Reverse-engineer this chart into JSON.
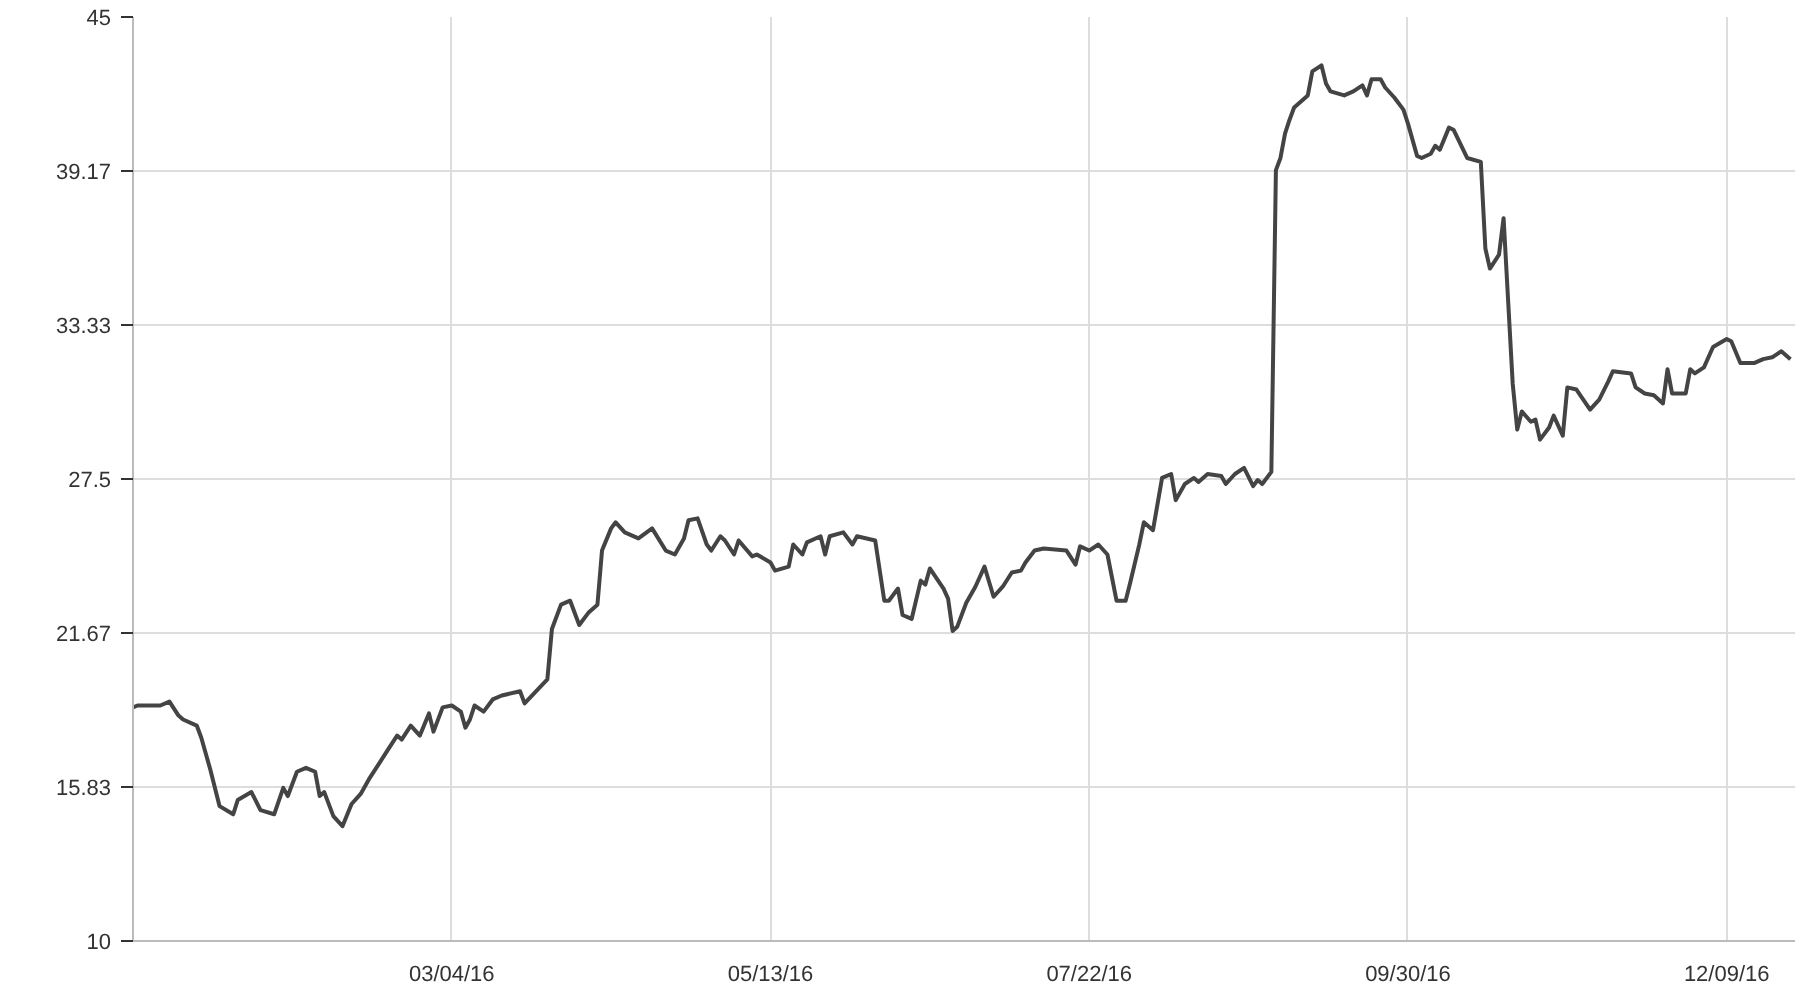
{
  "chart_data": {
    "type": "line",
    "x": [
      "2015-12-25",
      "2015-12-26",
      "2015-12-31",
      "2016-01-02",
      "2016-01-04",
      "2016-01-05",
      "2016-01-08",
      "2016-01-09",
      "2016-01-11",
      "2016-01-13",
      "2016-01-16",
      "2016-01-17",
      "2016-01-20",
      "2016-01-22",
      "2016-01-25",
      "2016-01-27",
      "2016-01-28",
      "2016-01-30",
      "2016-02-01",
      "2016-02-03",
      "2016-02-04",
      "2016-02-05",
      "2016-02-07",
      "2016-02-09",
      "2016-02-11",
      "2016-02-13",
      "2016-02-15",
      "2016-02-17",
      "2016-02-19",
      "2016-02-21",
      "2016-02-22",
      "2016-02-24",
      "2016-02-26",
      "2016-02-28",
      "2016-02-29",
      "2016-03-02",
      "2016-03-04",
      "2016-03-06",
      "2016-03-07",
      "2016-03-08",
      "2016-03-09",
      "2016-03-11",
      "2016-03-13",
      "2016-03-15",
      "2016-03-19",
      "2016-03-20",
      "2016-03-25",
      "2016-03-26",
      "2016-03-28",
      "2016-03-30",
      "2016-04-01",
      "2016-04-03",
      "2016-04-05",
      "2016-04-06",
      "2016-04-08",
      "2016-04-09",
      "2016-04-11",
      "2016-04-14",
      "2016-04-17",
      "2016-04-20",
      "2016-04-22",
      "2016-04-24",
      "2016-04-25",
      "2016-04-27",
      "2016-04-29",
      "2016-04-30",
      "2016-05-02",
      "2016-05-03",
      "2016-05-05",
      "2016-05-06",
      "2016-05-09",
      "2016-05-10",
      "2016-05-13",
      "2016-05-14",
      "2016-05-17",
      "2016-05-18",
      "2016-05-20",
      "2016-05-21",
      "2016-05-24",
      "2016-05-25",
      "2016-05-26",
      "2016-05-29",
      "2016-05-31",
      "2016-06-01",
      "2016-06-05",
      "2016-06-07",
      "2016-06-08",
      "2016-06-10",
      "2016-06-11",
      "2016-06-13",
      "2016-06-15",
      "2016-06-16",
      "2016-06-17",
      "2016-06-20",
      "2016-06-21",
      "2016-06-22",
      "2016-06-23",
      "2016-06-25",
      "2016-06-27",
      "2016-06-29",
      "2016-07-01",
      "2016-07-03",
      "2016-07-05",
      "2016-07-07",
      "2016-07-08",
      "2016-07-10",
      "2016-07-12",
      "2016-07-17",
      "2016-07-19",
      "2016-07-20",
      "2016-07-22",
      "2016-07-24",
      "2016-07-26",
      "2016-07-28",
      "2016-07-30",
      "2016-07-31",
      "2016-08-02",
      "2016-08-03",
      "2016-08-05",
      "2016-08-07",
      "2016-08-09",
      "2016-08-10",
      "2016-08-12",
      "2016-08-14",
      "2016-08-15",
      "2016-08-17",
      "2016-08-20",
      "2016-08-21",
      "2016-08-23",
      "2016-08-25",
      "2016-08-27",
      "2016-08-28",
      "2016-08-29",
      "2016-08-31",
      "2016-09-01",
      "2016-09-02",
      "2016-09-03",
      "2016-09-04",
      "2016-09-05",
      "2016-09-08",
      "2016-09-09",
      "2016-09-11",
      "2016-09-12",
      "2016-09-13",
      "2016-09-16",
      "2016-09-18",
      "2016-09-20",
      "2016-09-21",
      "2016-09-22",
      "2016-09-24",
      "2016-09-25",
      "2016-09-27",
      "2016-09-29",
      "2016-09-30",
      "2016-10-02",
      "2016-10-03",
      "2016-10-05",
      "2016-10-06",
      "2016-10-07",
      "2016-10-09",
      "2016-10-10",
      "2016-10-13",
      "2016-10-16",
      "2016-10-17",
      "2016-10-18",
      "2016-10-20",
      "2016-10-21",
      "2016-10-23",
      "2016-10-24",
      "2016-10-25",
      "2016-10-27",
      "2016-10-28",
      "2016-10-29",
      "2016-10-31",
      "2016-11-01",
      "2016-11-03",
      "2016-11-04",
      "2016-11-06",
      "2016-11-09",
      "2016-11-11",
      "2016-11-13",
      "2016-11-14",
      "2016-11-18",
      "2016-11-19",
      "2016-11-21",
      "2016-11-23",
      "2016-11-25",
      "2016-11-26",
      "2016-11-27",
      "2016-11-30",
      "2016-12-01",
      "2016-12-02",
      "2016-12-04",
      "2016-12-06",
      "2016-12-09",
      "2016-12-10",
      "2016-12-12",
      "2016-12-15",
      "2016-12-17",
      "2016-12-19",
      "2016-12-21",
      "2016-12-23"
    ],
    "series": [
      {
        "color": "#444444",
        "values": [
          18.85,
          18.92,
          18.92,
          19.07,
          18.54,
          18.39,
          18.16,
          17.7,
          16.48,
          15.11,
          14.8,
          15.34,
          15.64,
          14.96,
          14.8,
          15.8,
          15.49,
          16.41,
          16.56,
          16.41,
          15.49,
          15.64,
          14.73,
          14.35,
          15.19,
          15.57,
          16.18,
          16.71,
          17.25,
          17.78,
          17.63,
          18.16,
          17.78,
          18.62,
          17.93,
          18.85,
          18.92,
          18.69,
          18.08,
          18.39,
          18.92,
          18.69,
          19.15,
          19.3,
          19.46,
          19.0,
          19.91,
          21.82,
          22.74,
          22.89,
          21.97,
          22.43,
          22.74,
          24.79,
          25.63,
          25.86,
          25.48,
          25.25,
          25.63,
          24.79,
          24.64,
          25.25,
          25.94,
          26.01,
          25.02,
          24.79,
          25.33,
          25.17,
          24.64,
          25.17,
          24.57,
          24.64,
          24.34,
          24.03,
          24.18,
          25.02,
          24.64,
          25.1,
          25.33,
          24.64,
          25.33,
          25.48,
          25.02,
          25.33,
          25.17,
          22.89,
          22.89,
          23.35,
          22.35,
          22.2,
          23.65,
          23.5,
          24.11,
          23.35,
          22.97,
          21.74,
          21.9,
          22.81,
          23.42,
          24.18,
          23.04,
          23.42,
          23.96,
          24.03,
          24.34,
          24.79,
          24.87,
          24.79,
          24.26,
          24.95,
          24.79,
          25.02,
          24.64,
          22.89,
          22.89,
          23.57,
          25.02,
          25.86,
          25.56,
          27.54,
          27.69,
          26.7,
          27.31,
          27.54,
          27.39,
          27.69,
          27.61,
          27.31,
          27.69,
          27.92,
          27.23,
          27.46,
          27.31,
          27.77,
          39.2,
          39.66,
          40.58,
          41.11,
          41.57,
          42.03,
          42.94,
          43.17,
          42.48,
          42.18,
          42.03,
          42.18,
          42.41,
          42.03,
          42.64,
          42.64,
          42.33,
          41.95,
          41.49,
          40.96,
          39.74,
          39.66,
          39.82,
          40.12,
          39.97,
          40.81,
          40.73,
          39.66,
          39.51,
          36.23,
          35.47,
          36.0,
          37.38,
          31.12,
          29.37,
          30.06,
          29.67,
          29.75,
          28.99,
          29.45,
          29.9,
          29.14,
          30.97,
          30.89,
          30.13,
          30.51,
          31.2,
          31.58,
          31.5,
          30.97,
          30.74,
          30.67,
          30.36,
          31.66,
          30.74,
          30.74,
          31.66,
          31.5,
          31.73,
          32.5,
          32.8,
          32.72,
          31.89,
          31.89,
          32.04,
          32.11,
          32.34,
          32.04
        ]
      }
    ],
    "xlim": [
      "2015-12-25",
      "2016-12-24"
    ],
    "xticks": [
      {
        "value": "2016-03-04",
        "label": "03/04/16"
      },
      {
        "value": "2016-05-13",
        "label": "05/13/16"
      },
      {
        "value": "2016-07-22",
        "label": "07/22/16"
      },
      {
        "value": "2016-09-30",
        "label": "09/30/16"
      },
      {
        "value": "2016-12-09",
        "label": "12/09/16"
      }
    ],
    "ylim": [
      10,
      45
    ],
    "yticks": [
      10,
      15.83,
      21.67,
      27.5,
      33.33,
      39.17,
      45
    ],
    "grid": true,
    "marker": "none",
    "line_style": "solid"
  }
}
